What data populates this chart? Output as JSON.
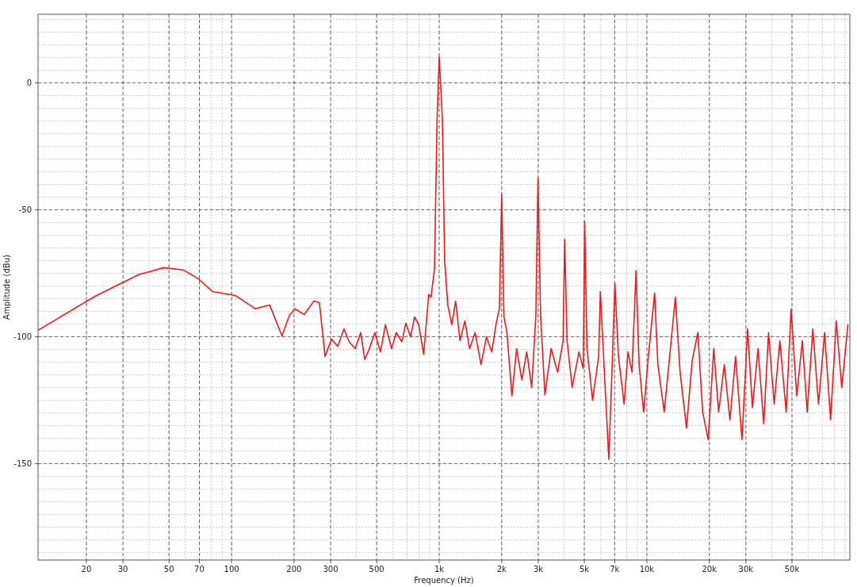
{
  "chart_data": {
    "type": "line",
    "xlabel": "Frequency (Hz)",
    "ylabel": "Amplitude (dBu)",
    "log": "x",
    "grid": true,
    "marker": "none",
    "line_style": "solid",
    "xlim": [
      11.7,
      95000
    ],
    "ylim": [
      -188,
      27
    ],
    "xticks": [
      20,
      30,
      50,
      70,
      100,
      200,
      300,
      500,
      {
        "value": 1000,
        "label": "1k"
      },
      {
        "value": 2000,
        "label": "2k"
      },
      {
        "value": 3000,
        "label": "3k"
      },
      {
        "value": 5000,
        "label": "5k"
      },
      {
        "value": 7000,
        "label": "7k"
      },
      {
        "value": 10000,
        "label": "10k"
      },
      {
        "value": 20000,
        "label": "20k"
      },
      {
        "value": 30000,
        "label": "30k"
      },
      {
        "value": 50000,
        "label": "50k"
      }
    ],
    "yticks": [
      -150,
      -100,
      -50,
      0
    ],
    "series": [
      {
        "color": "#f01818",
        "x": [
          11.7,
          22.1,
          35.7,
          47.4,
          59,
          69.1,
          80.9,
          104.5,
          130,
          152.5,
          175,
          190,
          202,
          224,
          249,
          265,
          282,
          303,
          325,
          348,
          368,
          394,
          419,
          438,
          461,
          490,
          521,
          551,
          590,
          621,
          661,
          691,
          728,
          761,
          797,
          842,
          890,
          914,
          949,
          977,
          1000,
          1036,
          1062,
          1100,
          1150,
          1200,
          1260,
          1330,
          1400,
          1490,
          1590,
          1690,
          1790,
          1880,
          1950,
          2000,
          2050,
          2120,
          2240,
          2360,
          2500,
          2640,
          2790,
          2920,
          2990,
          3080,
          3230,
          3460,
          3720,
          3950,
          4020,
          4130,
          4370,
          4710,
          4940,
          5020,
          5150,
          5480,
          5860,
          5970,
          6190,
          6560,
          6790,
          7020,
          7300,
          7770,
          8110,
          8480,
          8870,
          9180,
          9650,
          10170,
          10900,
          11300,
          12120,
          12880,
          13720,
          14460,
          15530,
          16530,
          17600,
          18570,
          19750,
          21000,
          22170,
          23600,
          25130,
          26750,
          28720,
          30570,
          32240,
          34320,
          36550,
          38550,
          41050,
          43700,
          46900,
          49500,
          52700,
          56100,
          59200,
          63000,
          67100,
          71800,
          76700,
          81700,
          86800,
          93000
        ],
        "values": [
          -97.5,
          -84,
          -75.6,
          -72.8,
          -73.8,
          -77.2,
          -82.2,
          -83.8,
          -89,
          -87.5,
          -99.7,
          -91.6,
          -89,
          -91.3,
          -86,
          -86.6,
          -107.8,
          -101,
          -103.8,
          -96.9,
          -102,
          -104.7,
          -98.4,
          -109,
          -104.7,
          -98.4,
          -106,
          -95.3,
          -104.7,
          -98.4,
          -102,
          -94.7,
          -100,
          -92.2,
          -95.3,
          -107,
          -83.4,
          -84.4,
          -73.4,
          -14,
          10.3,
          -14,
          -70,
          -87.5,
          -95.3,
          -86,
          -101.6,
          -93.8,
          -104.7,
          -98.4,
          -111,
          -100,
          -106,
          -95,
          -89,
          -44,
          -92,
          -98.4,
          -123.4,
          -104.7,
          -117,
          -106,
          -120,
          -92,
          -37.5,
          -92,
          -123,
          -104.7,
          -114,
          -101.6,
          -61.6,
          -101.6,
          -120,
          -106,
          -112.5,
          -54.7,
          -104.7,
          -125,
          -107.8,
          -82.2,
          -107.8,
          -148.4,
          -114,
          -79,
          -107.8,
          -126.6,
          -106,
          -114,
          -74,
          -111,
          -129.7,
          -107.8,
          -82.8,
          -111,
          -129.7,
          -107.8,
          -84.4,
          -114,
          -136,
          -109.4,
          -98.4,
          -129.7,
          -140.6,
          -104.7,
          -129.7,
          -111,
          -132.8,
          -107.8,
          -140.6,
          -96.9,
          -128,
          -104.7,
          -134.4,
          -98.4,
          -126.6,
          -101.6,
          -129.7,
          -89,
          -123.4,
          -101.6,
          -129.7,
          -96.9,
          -126.6,
          -98.4,
          -132.8,
          -93.8,
          -120,
          -95.3
        ]
      }
    ]
  }
}
